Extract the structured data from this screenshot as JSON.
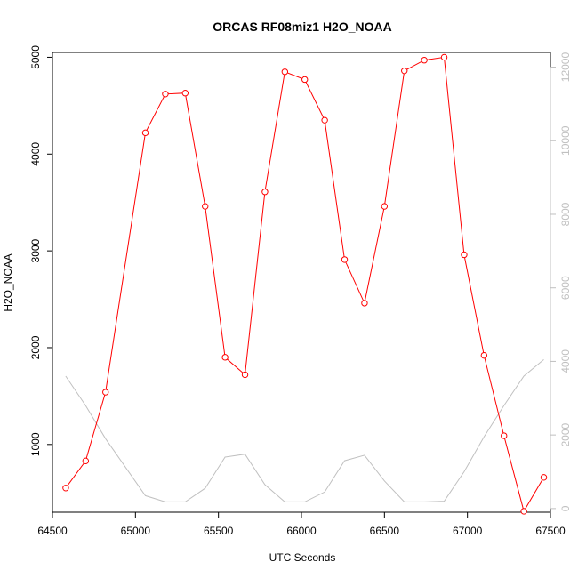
{
  "chart_data": {
    "type": "line",
    "title": "ORCAS RF08miz1 H2O_NOAA",
    "xlabel": "UTC Seconds",
    "ylabel": "H2O_NOAA",
    "xlim": [
      64500,
      67500
    ],
    "ylim": [
      300,
      5050
    ],
    "y2lim": [
      -100,
      12400
    ],
    "x_ticks": [
      64500,
      65000,
      65500,
      66000,
      66500,
      67000,
      67500
    ],
    "y_ticks": [
      1000,
      2000,
      3000,
      4000,
      5000
    ],
    "y2_ticks": [
      0,
      2000,
      4000,
      6000,
      8000,
      10000,
      12000
    ],
    "grid": false,
    "legend": "none",
    "series": [
      {
        "axis": "left",
        "color": "#ff0000",
        "marker": "open-circle",
        "x": [
          64580,
          64700,
          64820,
          65060,
          65180,
          65300,
          65420,
          65540,
          65660,
          65780,
          65900,
          66020,
          66140,
          66260,
          66380,
          66500,
          66620,
          66740,
          66860,
          66980,
          67100,
          67220,
          67340,
          67460
        ],
        "values": [
          550,
          830,
          1540,
          4220,
          4620,
          4630,
          3460,
          1900,
          1720,
          3610,
          4850,
          4770,
          4350,
          2910,
          2460,
          3460,
          4860,
          4970,
          5000,
          2960,
          1920,
          1090,
          310,
          660
        ]
      },
      {
        "axis": "right",
        "color": "#c0c0c0",
        "marker": "none",
        "x": [
          64580,
          64700,
          64820,
          65060,
          65180,
          65300,
          65420,
          65540,
          65660,
          65780,
          65900,
          66020,
          66140,
          66260,
          66380,
          66500,
          66620,
          66740,
          66860,
          66980,
          67100,
          67220,
          67340,
          67460
        ],
        "values": [
          3600,
          2800,
          1900,
          350,
          180,
          180,
          550,
          1400,
          1480,
          650,
          180,
          180,
          450,
          1300,
          1450,
          750,
          180,
          180,
          200,
          1000,
          1950,
          2800,
          3600,
          4050
        ]
      }
    ]
  }
}
